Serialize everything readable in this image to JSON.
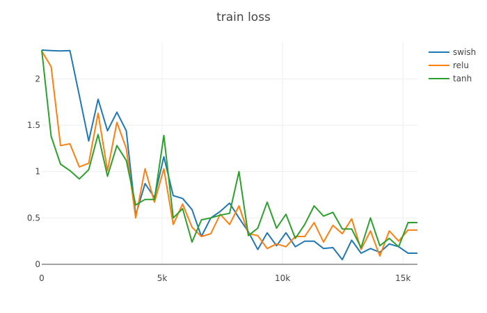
{
  "chart_data": {
    "type": "line",
    "title": "train loss",
    "xlabel": "",
    "ylabel": "",
    "xlim": [
      0,
      15600
    ],
    "ylim": [
      0,
      2.4
    ],
    "grid": true,
    "legend": "top-right",
    "xticks": [
      {
        "value": 0,
        "label": "0"
      },
      {
        "value": 5000,
        "label": "5k"
      },
      {
        "value": 10000,
        "label": "10k"
      },
      {
        "value": 15000,
        "label": "15k"
      }
    ],
    "yticks": [
      {
        "value": 0,
        "label": "0"
      },
      {
        "value": 0.5,
        "label": "0.5"
      },
      {
        "value": 1,
        "label": "1"
      },
      {
        "value": 1.5,
        "label": "1.5"
      },
      {
        "value": 2,
        "label": "2"
      }
    ],
    "x": [
      0,
      390,
      780,
      1170,
      1560,
      1950,
      2340,
      2730,
      3120,
      3510,
      3900,
      4290,
      4680,
      5070,
      5460,
      5850,
      6240,
      6630,
      7020,
      7410,
      7800,
      8190,
      8580,
      8970,
      9360,
      9750,
      10140,
      10530,
      10920,
      11310,
      11700,
      12090,
      12480,
      12870,
      13260,
      13650,
      14040,
      14430,
      14820,
      15210,
      15600
    ],
    "series": [
      {
        "name": "swish",
        "color": "#1f77b4",
        "values": [
          2.31,
          2.305,
          2.3,
          2.305,
          1.82,
          1.33,
          1.78,
          1.44,
          1.64,
          1.44,
          0.53,
          0.87,
          0.72,
          1.16,
          0.74,
          0.71,
          0.59,
          0.3,
          0.5,
          0.57,
          0.66,
          0.5,
          0.35,
          0.16,
          0.34,
          0.2,
          0.34,
          0.19,
          0.25,
          0.25,
          0.17,
          0.18,
          0.05,
          0.26,
          0.12,
          0.17,
          0.13,
          0.22,
          0.19,
          0.12,
          0.12
        ]
      },
      {
        "name": "relu",
        "color": "#ff7f0e",
        "values": [
          2.3,
          2.13,
          1.28,
          1.3,
          1.05,
          1.09,
          1.63,
          1.01,
          1.53,
          1.25,
          0.5,
          1.03,
          0.67,
          1.03,
          0.43,
          0.65,
          0.4,
          0.3,
          0.33,
          0.54,
          0.43,
          0.63,
          0.33,
          0.31,
          0.17,
          0.22,
          0.19,
          0.3,
          0.3,
          0.45,
          0.24,
          0.42,
          0.33,
          0.49,
          0.16,
          0.36,
          0.09,
          0.36,
          0.25,
          0.37,
          0.37
        ]
      },
      {
        "name": "tanh",
        "color": "#2ca02c",
        "values": [
          2.31,
          1.38,
          1.08,
          1.01,
          0.92,
          1.02,
          1.4,
          0.95,
          1.28,
          1.12,
          0.64,
          0.7,
          0.7,
          1.39,
          0.5,
          0.6,
          0.24,
          0.48,
          0.5,
          0.53,
          0.55,
          1.0,
          0.31,
          0.39,
          0.67,
          0.39,
          0.54,
          0.28,
          0.43,
          0.63,
          0.52,
          0.56,
          0.38,
          0.38,
          0.18,
          0.5,
          0.2,
          0.28,
          0.19,
          0.45,
          0.45
        ]
      }
    ]
  }
}
